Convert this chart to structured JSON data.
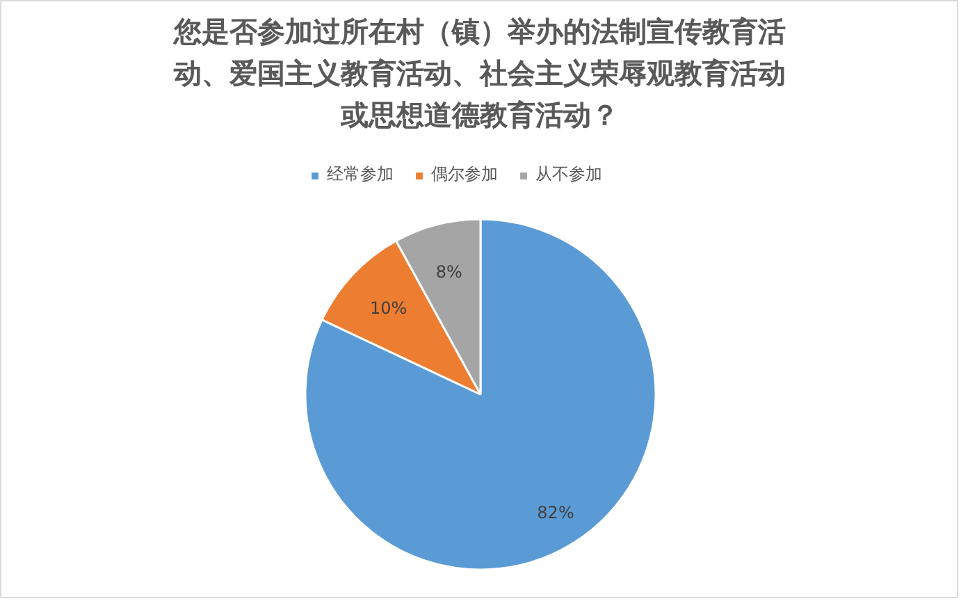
{
  "chart_data": {
    "type": "pie",
    "title": "您是否参加过所在村（镇）举办的法制宣传教育活动、爱国主义教育活动、社会主义荣辱观教育活动或思想道德教育活动？",
    "categories": [
      "经常参加",
      "偶尔参加",
      "从不参加"
    ],
    "values": [
      82,
      10,
      8
    ],
    "colors": [
      "#5b9bd5",
      "#ed7d31",
      "#a5a5a5"
    ],
    "value_labels": [
      "82%",
      "10%",
      "8%"
    ],
    "legend": "top"
  }
}
